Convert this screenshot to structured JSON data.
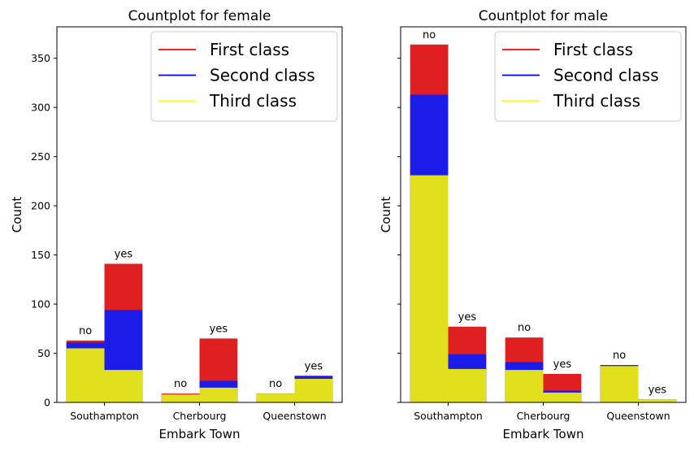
{
  "chart_data": [
    {
      "type": "bar",
      "title": "Countplot for female",
      "xlabel": "Embark Town",
      "ylabel": "Count",
      "categories": [
        "Southampton",
        "Cherbourg",
        "Queenstown"
      ],
      "ylim": [
        0,
        382
      ],
      "yticks": [
        0,
        50,
        100,
        150,
        200,
        250,
        300,
        350
      ],
      "hue_labels": [
        "no",
        "yes"
      ],
      "series": [
        {
          "name": "First class",
          "color": "#e02020",
          "values": {
            "no": [
              63,
              9,
              9
            ],
            "yes": [
              141,
              65,
              27
            ]
          }
        },
        {
          "name": "Second class",
          "color": "#1c1ce8",
          "values": {
            "no": [
              61,
              8,
              9
            ],
            "yes": [
              94,
              22,
              27
            ]
          }
        },
        {
          "name": "Third class",
          "color": "#e0e01c",
          "values": {
            "no": [
              55,
              8,
              9
            ],
            "yes": [
              33,
              15,
              24
            ]
          }
        }
      ],
      "legend": {
        "placement": "top-right",
        "entries": [
          {
            "label": "First class",
            "color": "#ff0000"
          },
          {
            "label": "Second class",
            "color": "#0000ff"
          },
          {
            "label": "Third class",
            "color": "#ffff00"
          }
        ]
      }
    },
    {
      "type": "bar",
      "title": "Countplot for male",
      "xlabel": "Embark Town",
      "ylabel": "Count",
      "categories": [
        "Southampton",
        "Cherbourg",
        "Queenstown"
      ],
      "ylim": [
        0,
        382
      ],
      "yticks": [
        0,
        50,
        100,
        150,
        200,
        250,
        300,
        350
      ],
      "hue_labels": [
        "no",
        "yes"
      ],
      "series": [
        {
          "name": "First class",
          "color": "#e02020",
          "values": {
            "no": [
              364,
              66,
              38
            ],
            "yes": [
              77,
              29,
              3
            ]
          }
        },
        {
          "name": "Second class",
          "color": "#1c1ce8",
          "values": {
            "no": [
              313,
              41,
              38
            ],
            "yes": [
              49,
              12,
              3
            ]
          }
        },
        {
          "name": "Third class",
          "color": "#e0e01c",
          "values": {
            "no": [
              231,
              33,
              37
            ],
            "yes": [
              34,
              10,
              3
            ]
          }
        }
      ],
      "legend": {
        "placement": "top-right",
        "entries": [
          {
            "label": "First class",
            "color": "#ff0000"
          },
          {
            "label": "Second class",
            "color": "#0000ff"
          },
          {
            "label": "Third class",
            "color": "#ffff00"
          }
        ]
      }
    }
  ]
}
